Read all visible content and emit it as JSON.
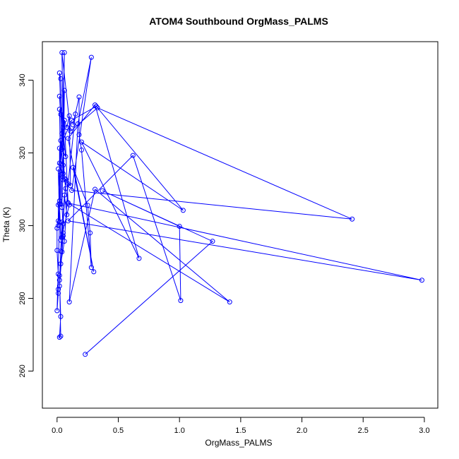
{
  "chart_data": {
    "type": "line",
    "marker": "open-circle",
    "title": "ATOM4 Southbound OrgMass_PALMS",
    "xlabel": "OrgMass_PALMS",
    "ylabel": "Theta (K)",
    "xlim": [
      -0.12,
      3.11
    ],
    "ylim": [
      249.8,
      350.6
    ],
    "x_ticks": [
      0.0,
      0.5,
      1.0,
      1.5,
      2.0,
      2.5,
      3.0
    ],
    "x_tick_labels": [
      "0.0",
      "0.5",
      "1.0",
      "1.5",
      "2.0",
      "2.5",
      "3.0"
    ],
    "y_ticks": [
      260,
      280,
      300,
      320,
      340
    ],
    "y_tick_labels": [
      "260",
      "280",
      "300",
      "320",
      "340"
    ],
    "grid": false,
    "series": [
      {
        "color": "#0000ff",
        "points": [
          [
            0.23,
            264.6
          ],
          [
            1.27,
            295.7
          ],
          [
            0.37,
            309.6
          ],
          [
            1.0,
            299.8
          ],
          [
            1.01,
            279.4
          ],
          [
            0.62,
            319.3
          ],
          [
            0.09,
            301.3
          ],
          [
            2.98,
            285.0
          ],
          [
            0.09,
            306.2
          ],
          [
            1.41,
            279.0
          ],
          [
            0.31,
            310.0
          ],
          [
            0.1,
            279.0
          ],
          [
            0.17,
            328.0
          ],
          [
            0.28,
            346.3
          ],
          [
            0.12,
            309.7
          ],
          [
            2.41,
            301.8
          ],
          [
            0.33,
            332.4
          ],
          [
            0.11,
            326.0
          ],
          [
            0.04,
            347.6
          ],
          [
            0.05,
            327.0
          ],
          [
            0.06,
            347.6
          ],
          [
            0.04,
            321.0
          ],
          [
            0.02,
            342.0
          ],
          [
            0.03,
            340.4
          ],
          [
            0.06,
            313.0
          ],
          [
            0.02,
            335.6
          ],
          [
            0.07,
            319.0
          ],
          [
            0.04,
            321.0
          ],
          [
            0.03,
            330.6
          ],
          [
            0.04,
            325.3
          ],
          [
            0.03,
            317.0
          ],
          [
            0.05,
            312.6
          ],
          [
            0.06,
            337.2
          ],
          [
            0.04,
            305.0
          ],
          [
            0.02,
            332.0
          ],
          [
            0.03,
            314.0
          ],
          [
            0.05,
            298.0
          ],
          [
            0.03,
            293.0
          ],
          [
            0.04,
            301.0
          ],
          [
            0.02,
            285.0
          ],
          [
            0.03,
            275.0
          ],
          [
            0.02,
            269.3
          ],
          [
            0.03,
            269.6
          ],
          [
            0.02,
            286.3
          ],
          [
            0.04,
            292.8
          ],
          [
            0.02,
            283.4
          ],
          [
            0.05,
            297.2
          ],
          [
            0.03,
            289.5
          ],
          [
            0.06,
            295.7
          ],
          [
            0.09,
            311.5
          ],
          [
            0.15,
            330.7
          ],
          [
            0.13,
            327.7
          ],
          [
            0.18,
            335.4
          ],
          [
            0.18,
            325.0
          ],
          [
            0.2,
            320.8
          ],
          [
            0.28,
            288.5
          ],
          [
            0.27,
            298.0
          ],
          [
            0.25,
            305.6
          ],
          [
            0.13,
            316.0
          ],
          [
            0.3,
            287.3
          ],
          [
            0.09,
            324.0
          ],
          [
            0.31,
            333.2
          ],
          [
            0.67,
            291.0
          ],
          [
            0.2,
            323.0
          ],
          [
            1.03,
            304.2
          ],
          [
            0.32,
            332.8
          ],
          [
            0.12,
            329.0
          ],
          [
            0.02,
            321.3
          ],
          [
            0.02,
            306.8
          ],
          [
            0.01,
            305.7
          ],
          [
            0.01,
            301.3
          ],
          [
            0.0,
            299.3
          ],
          [
            0.0,
            293.2
          ],
          [
            0.01,
            286.7
          ],
          [
            0.01,
            282.5
          ],
          [
            0.01,
            281.4
          ],
          [
            0.0,
            276.6
          ],
          [
            0.02,
            301.0
          ],
          [
            0.01,
            315.6
          ],
          [
            0.03,
            305.9
          ],
          [
            0.02,
            317.2
          ],
          [
            0.03,
            323.4
          ],
          [
            0.05,
            314.3
          ],
          [
            0.05,
            316.6
          ],
          [
            0.07,
            310.2
          ],
          [
            0.09,
            306.3
          ],
          [
            0.06,
            329.0
          ],
          [
            0.08,
            327.0
          ],
          [
            0.1,
            330.2
          ],
          [
            0.11,
            311.0
          ],
          [
            0.07,
            312.7
          ],
          [
            0.05,
            300.5
          ],
          [
            0.04,
            296.8
          ],
          [
            0.06,
            308.4
          ],
          [
            0.08,
            303.0
          ],
          [
            0.1,
            305.7
          ],
          [
            0.03,
            296.0
          ],
          [
            0.02,
            306.0
          ],
          [
            0.01,
            300.0
          ]
        ]
      }
    ]
  }
}
